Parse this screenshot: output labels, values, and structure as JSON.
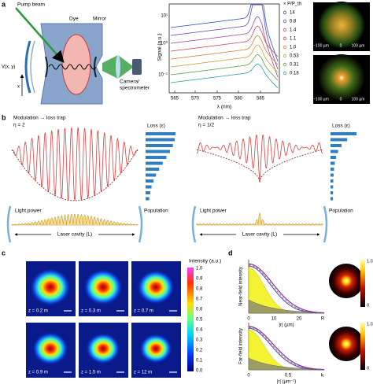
{
  "panel_a": {
    "label": "a",
    "schematic": {
      "pump_beam": "Pump beam",
      "dye": "Dye",
      "mirror": "Mirror",
      "potential": "V(x, y)",
      "axis": "x",
      "camera": [
        "Camera/",
        "spectrometer"
      ]
    },
    "spectrum": {
      "y_label": "Signal (a.u.)",
      "y_ticks": [
        "10¹",
        "10⁰",
        "10⁻¹"
      ],
      "x_ticks": [
        "565",
        "570",
        "575",
        "580",
        "585"
      ],
      "x_label": "λ (nm)",
      "legend_title": "× P/P_th",
      "legend": [
        "14",
        "0.8",
        "1.4",
        "1.1",
        "1.0",
        "0.53",
        "0.31",
        "0.18"
      ]
    },
    "images": {
      "scale": [
        [
          "−100 µm",
          "0",
          "100 µm"
        ],
        [
          "−100 µm",
          "0",
          "100 µm"
        ]
      ]
    }
  },
  "panel_b": {
    "label": "b",
    "left": {
      "title": "Modulation → loss trap",
      "eta": "η = 2",
      "loss": "Loss (ε)",
      "population": "Population",
      "light_power": "Light power",
      "cavity": "Laser cavity (L)"
    },
    "right": {
      "title": "Modulation → loss trap",
      "eta": "η = 1/2",
      "loss": "Loss (ε)",
      "population": "Population",
      "light_power": "Light power",
      "cavity": "Laser cavity (L)"
    }
  },
  "panel_c": {
    "label": "c",
    "images": [
      "z = 0.2 m",
      "z = 0.3 m",
      "z = 0.7 m",
      "z = 0.9 m",
      "z = 1.5 m",
      "z = 12 m"
    ],
    "colorbar_label": "Intensity (a.u.)",
    "colorbar_ticks": [
      "1.0",
      "0.9",
      "0.8",
      "0.7",
      "0.6",
      "0.5",
      "0.4",
      "0.3",
      "0.2",
      "0.1",
      "0.0"
    ]
  },
  "panel_d": {
    "label": "d",
    "near": {
      "y_label": "Near-field intensity",
      "x_ticks": [
        "0",
        "10",
        "20",
        "R"
      ],
      "x_label": "|r| (µm)",
      "colorbar_ticks": [
        "1.0",
        "0"
      ]
    },
    "far": {
      "y_label": "Far-field intensity",
      "x_ticks": [
        "0",
        "0.5",
        "kₜ"
      ],
      "x_label": "|r| (µm⁻¹)",
      "colorbar_ticks": [
        "1.0",
        "0"
      ]
    }
  }
}
